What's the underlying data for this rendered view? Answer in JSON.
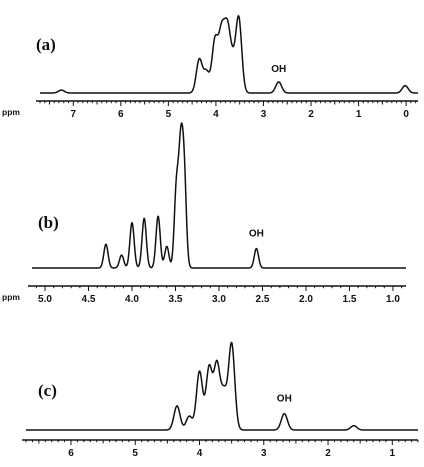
{
  "chart_data": [
    {
      "type": "line",
      "panel_label": "(a)",
      "xlabel": "ppm",
      "xlim": [
        7.7,
        -0.25
      ],
      "ticks": [
        7,
        6,
        5,
        4,
        3,
        2,
        1,
        0
      ],
      "tick_labels": [
        "7",
        "6",
        "5",
        "4",
        "3",
        "2",
        "1",
        "0"
      ],
      "peaks": [
        {
          "x": 4.35,
          "h": 0.45
        },
        {
          "x": 4.2,
          "h": 0.28
        },
        {
          "x": 4.02,
          "h": 0.7
        },
        {
          "x": 3.88,
          "h": 0.78
        },
        {
          "x": 3.76,
          "h": 0.8
        },
        {
          "x": 3.65,
          "h": 0.35
        },
        {
          "x": 3.52,
          "h": 1.0
        },
        {
          "x": 2.68,
          "h": 0.15
        },
        {
          "x": 7.25,
          "h": 0.04
        },
        {
          "x": 0.02,
          "h": 0.1
        }
      ],
      "annotations": [
        {
          "text": "OH",
          "x": 2.68
        }
      ]
    },
    {
      "type": "line",
      "panel_label": "(b)",
      "xlabel": "ppm",
      "xlim": [
        5.15,
        0.85
      ],
      "ticks": [
        5.0,
        4.5,
        4.0,
        3.5,
        3.0,
        2.5,
        2.0,
        1.5,
        1.0
      ],
      "tick_labels": [
        "5.0",
        "4.5",
        "4.0",
        "3.5",
        "3.0",
        "2.5",
        "2.0",
        "1.5",
        "1.0"
      ],
      "peaks": [
        {
          "x": 4.3,
          "h": 0.22
        },
        {
          "x": 4.12,
          "h": 0.12
        },
        {
          "x": 4.0,
          "h": 0.42
        },
        {
          "x": 3.86,
          "h": 0.46
        },
        {
          "x": 3.7,
          "h": 0.48
        },
        {
          "x": 3.6,
          "h": 0.2
        },
        {
          "x": 3.49,
          "h": 0.72
        },
        {
          "x": 3.44,
          "h": 1.0
        },
        {
          "x": 3.4,
          "h": 0.82
        },
        {
          "x": 2.57,
          "h": 0.18
        }
      ],
      "annotations": [
        {
          "text": "OH",
          "x": 2.57
        }
      ]
    },
    {
      "type": "line",
      "panel_label": "(c)",
      "xlabel": "",
      "xlim": [
        6.7,
        0.6
      ],
      "ticks": [
        6,
        5,
        4,
        3,
        2,
        1
      ],
      "tick_labels": [
        "6",
        "5",
        "4",
        "3",
        "2",
        "1"
      ],
      "peaks": [
        {
          "x": 4.35,
          "h": 0.28
        },
        {
          "x": 4.16,
          "h": 0.16
        },
        {
          "x": 4.0,
          "h": 0.68
        },
        {
          "x": 3.85,
          "h": 0.72
        },
        {
          "x": 3.73,
          "h": 0.75
        },
        {
          "x": 3.62,
          "h": 0.42
        },
        {
          "x": 3.5,
          "h": 1.0
        },
        {
          "x": 2.68,
          "h": 0.19
        },
        {
          "x": 1.6,
          "h": 0.05
        }
      ],
      "annotations": [
        {
          "text": "OH",
          "x": 2.68
        }
      ]
    }
  ]
}
